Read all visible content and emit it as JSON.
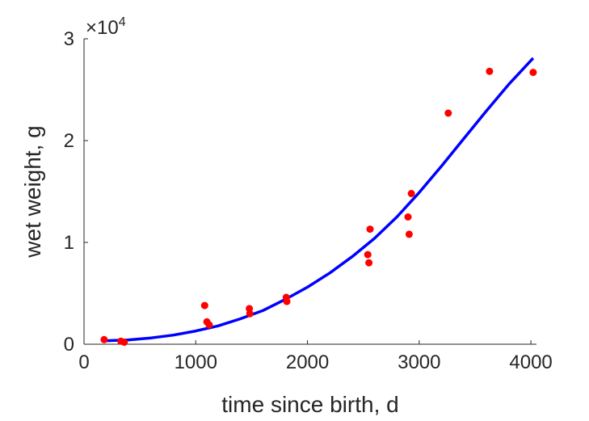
{
  "chart_data": {
    "type": "scatter",
    "title": "",
    "xlabel": "time since birth, d",
    "ylabel": "wet weight, g",
    "xlim": [
      0,
      4050
    ],
    "ylim": [
      0,
      30000
    ],
    "x_ticks": [
      0,
      1000,
      2000,
      3000,
      4000
    ],
    "x_tick_labels": [
      "0",
      "1000",
      "2000",
      "3000",
      "4000"
    ],
    "y_ticks": [
      0,
      10000,
      20000,
      30000
    ],
    "y_tick_labels": [
      "0",
      "1",
      "2",
      "3"
    ],
    "y_exponent": {
      "prefix": "×10",
      "power": "4"
    },
    "grid": false,
    "series": [
      {
        "type": "scatter",
        "color": "#ff0000",
        "points": [
          [
            180,
            450
          ],
          [
            330,
            300
          ],
          [
            360,
            200
          ],
          [
            1080,
            3800
          ],
          [
            1100,
            2200
          ],
          [
            1120,
            1900
          ],
          [
            1480,
            3500
          ],
          [
            1485,
            3000
          ],
          [
            1810,
            4600
          ],
          [
            1815,
            4200
          ],
          [
            2540,
            8800
          ],
          [
            2550,
            8000
          ],
          [
            2560,
            11300
          ],
          [
            2900,
            12500
          ],
          [
            2910,
            10800
          ],
          [
            2930,
            14800
          ],
          [
            3260,
            22700
          ],
          [
            3630,
            26800
          ],
          [
            4020,
            26700
          ]
        ]
      },
      {
        "type": "line",
        "color": "#0000ff",
        "points": [
          [
            180,
            330
          ],
          [
            400,
            430
          ],
          [
            600,
            620
          ],
          [
            800,
            900
          ],
          [
            1000,
            1300
          ],
          [
            1200,
            1800
          ],
          [
            1400,
            2500
          ],
          [
            1600,
            3300
          ],
          [
            1800,
            4400
          ],
          [
            2000,
            5600
          ],
          [
            2200,
            7000
          ],
          [
            2400,
            8600
          ],
          [
            2600,
            10400
          ],
          [
            2800,
            12500
          ],
          [
            3000,
            14900
          ],
          [
            3200,
            17500
          ],
          [
            3400,
            20200
          ],
          [
            3600,
            22900
          ],
          [
            3800,
            25500
          ],
          [
            4020,
            28100
          ]
        ]
      }
    ]
  }
}
